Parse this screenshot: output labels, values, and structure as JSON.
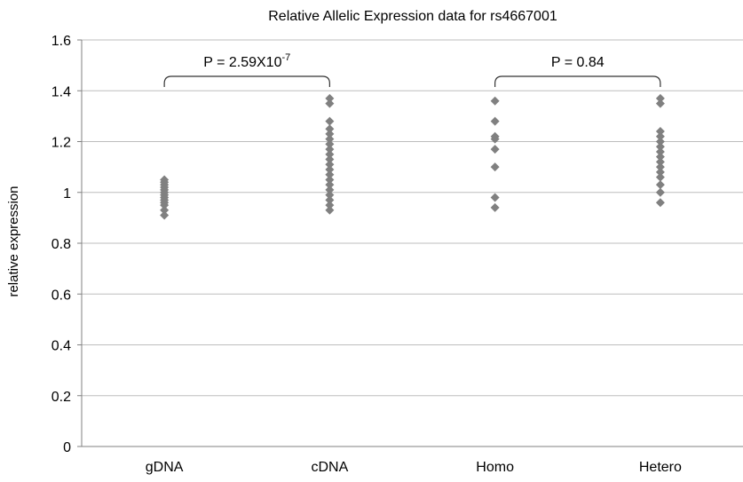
{
  "chart_data": {
    "type": "scatter",
    "title": "Relative Allelic Expression data for rs4667001",
    "xlabel": "",
    "ylabel": "relative expression",
    "ylim": [
      0,
      1.6
    ],
    "yticks": [
      "0",
      "0.2",
      "0.4",
      "0.6",
      "0.8",
      "1",
      "1.2",
      "1.4",
      "1.6"
    ],
    "grid": true,
    "categories": [
      "gDNA",
      "cDNA",
      "Homo",
      "Hetero"
    ],
    "marker_color": "#808080",
    "series": [
      {
        "category": "gDNA",
        "values": [
          0.91,
          0.93,
          0.95,
          0.96,
          0.97,
          0.98,
          0.99,
          1.0,
          1.01,
          1.02,
          1.03,
          1.04,
          1.05
        ]
      },
      {
        "category": "cDNA",
        "values": [
          0.93,
          0.95,
          0.97,
          0.99,
          1.01,
          1.03,
          1.05,
          1.07,
          1.09,
          1.11,
          1.13,
          1.15,
          1.17,
          1.19,
          1.21,
          1.23,
          1.25,
          1.28,
          1.35,
          1.37
        ]
      },
      {
        "category": "Homo",
        "values": [
          0.94,
          0.98,
          1.1,
          1.17,
          1.21,
          1.22,
          1.28,
          1.36
        ]
      },
      {
        "category": "Hetero",
        "values": [
          0.96,
          1.0,
          1.03,
          1.06,
          1.08,
          1.1,
          1.12,
          1.14,
          1.16,
          1.18,
          1.2,
          1.22,
          1.24,
          1.35,
          1.37
        ]
      }
    ],
    "annotations": [
      {
        "from": "gDNA",
        "to": "cDNA",
        "label_base": "P = 2.59X10",
        "label_exp": "-7"
      },
      {
        "from": "Homo",
        "to": "Hetero",
        "label_base": "P = 0.84",
        "label_exp": ""
      }
    ]
  }
}
